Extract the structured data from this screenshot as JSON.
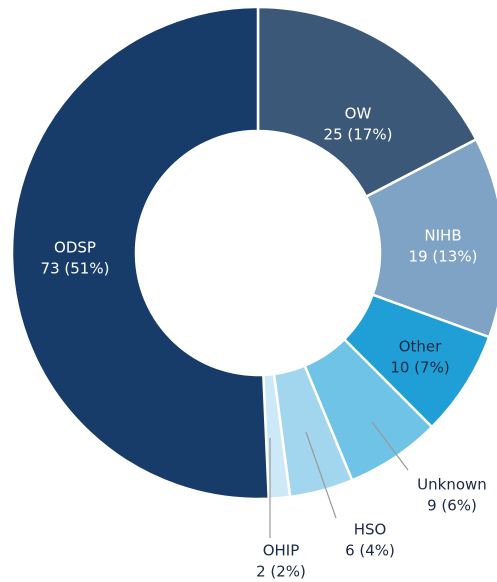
{
  "chart_data": {
    "type": "donut",
    "categories": [
      "OW",
      "NIHB",
      "Other",
      "Unknown",
      "HSO",
      "OHIP",
      "ODSP"
    ],
    "values": [
      25,
      19,
      10,
      9,
      6,
      2,
      73
    ],
    "value_labels": [
      "25 (17%)",
      "19 (13%)",
      "10 (7%)",
      "9 (6%)",
      "6 (4%)",
      "2 (2%)",
      "73 (51%)"
    ],
    "colors": [
      "#3b5878",
      "#7fa3c4",
      "#1f9fd5",
      "#6fc3e6",
      "#a2d6ef",
      "#cde9f7",
      "#173c6a"
    ]
  }
}
